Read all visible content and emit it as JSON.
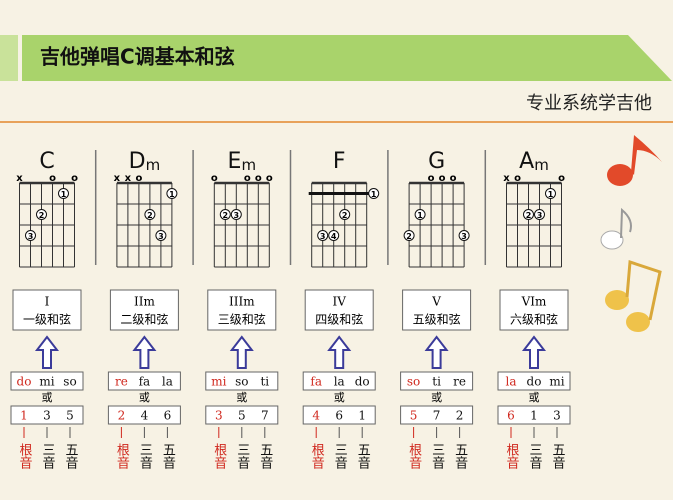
{
  "header": {
    "title": "吉他弹唱C调基本和弦",
    "subtitle": "专业系统学吉他"
  },
  "or_label": "或",
  "roles": [
    "根音",
    "三音",
    "五音"
  ],
  "chords": [
    {
      "root": "C",
      "markers": [
        {
          "string": 6,
          "mark": "x"
        },
        {
          "string": 3,
          "mark": "o"
        },
        {
          "string": 1,
          "mark": "o"
        }
      ],
      "fingers": [
        {
          "finger": 1,
          "string": 2,
          "fret": 1
        },
        {
          "finger": 2,
          "string": 4,
          "fret": 2
        },
        {
          "finger": 3,
          "string": 5,
          "fret": 3
        }
      ],
      "degree": "I",
      "degree_name": "一级和弦",
      "solfege": [
        "do",
        "mi",
        "so"
      ],
      "numbers": [
        1,
        3,
        5
      ]
    },
    {
      "root": "D",
      "suffix": "m",
      "markers": [
        {
          "string": 6,
          "mark": "x"
        },
        {
          "string": 5,
          "mark": "x"
        },
        {
          "string": 4,
          "mark": "o"
        }
      ],
      "fingers": [
        {
          "finger": 1,
          "string": 1,
          "fret": 1
        },
        {
          "finger": 2,
          "string": 3,
          "fret": 2
        },
        {
          "finger": 3,
          "string": 2,
          "fret": 3
        }
      ],
      "degree": "IIm",
      "degree_name": "二级和弦",
      "solfege": [
        "re",
        "fa",
        "la"
      ],
      "numbers": [
        2,
        4,
        6
      ]
    },
    {
      "root": "E",
      "suffix": "m",
      "markers": [
        {
          "string": 6,
          "mark": "o"
        },
        {
          "string": 3,
          "mark": "o"
        },
        {
          "string": 2,
          "mark": "o"
        },
        {
          "string": 1,
          "mark": "o"
        }
      ],
      "fingers": [
        {
          "finger": 2,
          "string": 5,
          "fret": 2
        },
        {
          "finger": 3,
          "string": 4,
          "fret": 2
        }
      ],
      "degree": "IIIm",
      "degree_name": "三级和弦",
      "solfege": [
        "mi",
        "so",
        "ti"
      ],
      "numbers": [
        3,
        5,
        7
      ]
    },
    {
      "root": "F",
      "markers": [],
      "barre": {
        "fret": 1,
        "finger": 1
      },
      "fingers": [
        {
          "finger": 2,
          "string": 3,
          "fret": 2
        },
        {
          "finger": 3,
          "string": 5,
          "fret": 3
        },
        {
          "finger": 4,
          "string": 4,
          "fret": 3
        }
      ],
      "degree": "IV",
      "degree_name": "四级和弦",
      "solfege": [
        "fa",
        "la",
        "do"
      ],
      "numbers": [
        4,
        6,
        1
      ]
    },
    {
      "root": "G",
      "markers": [
        {
          "string": 4,
          "mark": "o"
        },
        {
          "string": 3,
          "mark": "o"
        },
        {
          "string": 2,
          "mark": "o"
        }
      ],
      "fingers": [
        {
          "finger": 1,
          "string": 5,
          "fret": 2
        },
        {
          "finger": 2,
          "string": 6,
          "fret": 3
        },
        {
          "finger": 3,
          "string": 1,
          "fret": 3
        }
      ],
      "degree": "V",
      "degree_name": "五级和弦",
      "solfege": [
        "so",
        "ti",
        "re"
      ],
      "numbers": [
        5,
        7,
        2
      ]
    },
    {
      "root": "A",
      "suffix": "m",
      "markers": [
        {
          "string": 6,
          "mark": "x"
        },
        {
          "string": 5,
          "mark": "o"
        },
        {
          "string": 1,
          "mark": "o"
        }
      ],
      "fingers": [
        {
          "finger": 1,
          "string": 2,
          "fret": 1
        },
        {
          "finger": 2,
          "string": 4,
          "fret": 2
        },
        {
          "finger": 3,
          "string": 3,
          "fret": 2
        }
      ],
      "degree": "VIm",
      "degree_name": "六级和弦",
      "solfege": [
        "la",
        "do",
        "mi"
      ],
      "numbers": [
        6,
        1,
        3
      ]
    }
  ]
}
